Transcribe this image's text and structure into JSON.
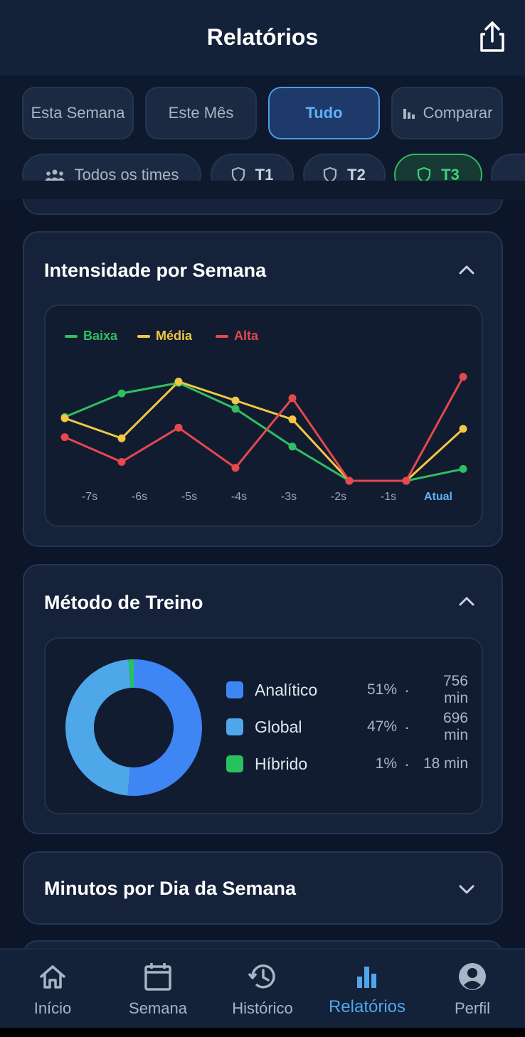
{
  "header": {
    "title": "Relatórios",
    "share_icon": "share-icon"
  },
  "period_tabs": [
    {
      "label": "Esta Semana"
    },
    {
      "label": "Este Mês"
    },
    {
      "label": "Tudo",
      "active": true
    },
    {
      "label": "Comparar",
      "icon": "bar-chart-icon"
    }
  ],
  "team_filters": [
    {
      "label": "Todos os times",
      "icon": "group-icon"
    },
    {
      "label": "T1",
      "icon": "shield-icon"
    },
    {
      "label": "T2",
      "icon": "shield-icon"
    },
    {
      "label": "T3",
      "icon": "shield-icon",
      "active": true
    }
  ],
  "intensity_card": {
    "title": "Intensidade por Semana",
    "chart_data": {
      "type": "line",
      "categories": [
        "-7s",
        "-6s",
        "-5s",
        "-4s",
        "-3s",
        "-2s",
        "-1s",
        "Atual"
      ],
      "series": [
        {
          "name": "Baixa",
          "color": "#2fbf5f",
          "values": [
            54,
            74,
            83,
            61,
            29,
            0,
            0,
            10
          ]
        },
        {
          "name": "Média",
          "color": "#f2c744",
          "values": [
            53,
            36,
            84,
            68,
            52,
            0,
            0,
            44
          ]
        },
        {
          "name": "Alta",
          "color": "#e5484d",
          "values": [
            37,
            16,
            45,
            11,
            70,
            0,
            0,
            88
          ]
        }
      ],
      "ylim": [
        0,
        100
      ],
      "grid": false,
      "legend_position": "top-left"
    }
  },
  "method_card": {
    "title": "Método de Treino",
    "chart_data": {
      "type": "pie",
      "labels": [
        "Analítico",
        "Global",
        "Híbrido"
      ],
      "values": [
        756,
        696,
        18
      ],
      "colors": [
        "#3f86f5",
        "#4ea7e8",
        "#25c25e"
      ],
      "percent_labels": [
        "51%",
        "47%",
        "1%"
      ],
      "minute_labels": [
        "756 min",
        "696 min",
        "18 min"
      ]
    }
  },
  "weekday_card": {
    "title": "Minutos por Dia da Semana"
  },
  "nav": [
    {
      "label": "Início",
      "icon": "home-icon"
    },
    {
      "label": "Semana",
      "icon": "calendar-icon"
    },
    {
      "label": "Histórico",
      "icon": "history-icon"
    },
    {
      "label": "Relatórios",
      "icon": "bar-chart-icon",
      "active": true
    },
    {
      "label": "Perfil",
      "icon": "profile-icon"
    }
  ]
}
